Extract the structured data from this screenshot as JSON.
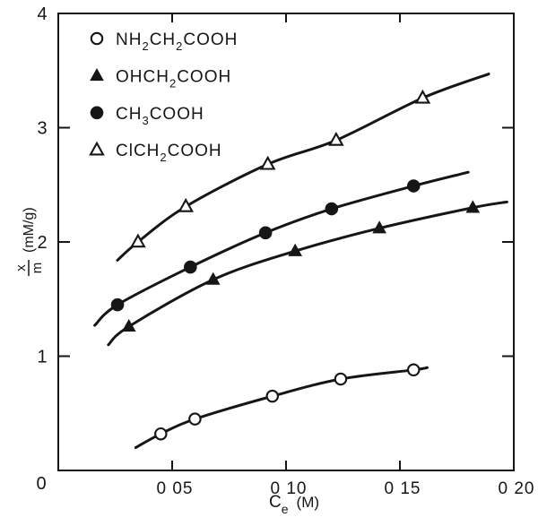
{
  "figure": {
    "background": "#ffffff",
    "ink": "#161616"
  },
  "chart_data": {
    "type": "line",
    "title": "",
    "xlabel": {
      "base": "C",
      "sub": "e",
      "units": "(M)"
    },
    "ylabel": {
      "numerator": "x",
      "denominator": "m",
      "units": "(mM/g)"
    },
    "xlim": [
      0,
      0.2
    ],
    "ylim": [
      0,
      4
    ],
    "grid": false,
    "legend_position": "upper-left-inside",
    "origin_label": "0",
    "x_ticks": [
      {
        "value": 0.05,
        "label": "0 05",
        "tick_mark": true
      },
      {
        "value": 0.1,
        "label": "0 10",
        "tick_mark": true
      },
      {
        "value": 0.15,
        "label": "0 15",
        "tick_mark": true
      },
      {
        "value": 0.2,
        "label": "0 20",
        "tick_mark": false
      }
    ],
    "y_ticks": [
      {
        "value": 1,
        "label": "1",
        "tick_mark": true
      },
      {
        "value": 2,
        "label": "2",
        "tick_mark": true
      },
      {
        "value": 3,
        "label": "3",
        "tick_mark": true
      },
      {
        "value": 4,
        "label": "4",
        "tick_mark": false
      }
    ],
    "legend": [
      {
        "formula": "NH2CH2COOH",
        "marker": "open-circle"
      },
      {
        "formula": "OHCH2COOH",
        "marker": "filled-triangle"
      },
      {
        "formula": "CH3COOH",
        "marker": "filled-circle"
      },
      {
        "formula": "ClCH2COOH",
        "marker": "open-triangle"
      }
    ],
    "series": [
      {
        "name": "NH2CH2COOH",
        "marker": "open-circle",
        "points": [
          [
            0.045,
            0.32
          ],
          [
            0.06,
            0.45
          ],
          [
            0.094,
            0.65
          ],
          [
            0.124,
            0.8
          ],
          [
            0.156,
            0.88
          ]
        ],
        "curve": [
          [
            0.034,
            0.2
          ],
          [
            0.045,
            0.32
          ],
          [
            0.06,
            0.45
          ],
          [
            0.094,
            0.65
          ],
          [
            0.124,
            0.8
          ],
          [
            0.156,
            0.88
          ],
          [
            0.162,
            0.9
          ]
        ]
      },
      {
        "name": "OHCH2COOH",
        "marker": "filled-triangle",
        "points": [
          [
            0.031,
            1.26
          ],
          [
            0.068,
            1.67
          ],
          [
            0.104,
            1.92
          ],
          [
            0.141,
            2.12
          ],
          [
            0.182,
            2.3
          ]
        ],
        "curve": [
          [
            0.022,
            1.1
          ],
          [
            0.031,
            1.26
          ],
          [
            0.068,
            1.67
          ],
          [
            0.104,
            1.92
          ],
          [
            0.141,
            2.12
          ],
          [
            0.182,
            2.3
          ],
          [
            0.197,
            2.35
          ]
        ]
      },
      {
        "name": "CH3COOH",
        "marker": "filled-circle",
        "points": [
          [
            0.026,
            1.45
          ],
          [
            0.058,
            1.78
          ],
          [
            0.091,
            2.08
          ],
          [
            0.12,
            2.29
          ],
          [
            0.156,
            2.49
          ]
        ],
        "curve": [
          [
            0.016,
            1.27
          ],
          [
            0.026,
            1.45
          ],
          [
            0.058,
            1.78
          ],
          [
            0.091,
            2.08
          ],
          [
            0.12,
            2.29
          ],
          [
            0.156,
            2.49
          ],
          [
            0.18,
            2.61
          ]
        ]
      },
      {
        "name": "ClCH2COOH",
        "marker": "open-triangle",
        "points": [
          [
            0.035,
            2.0
          ],
          [
            0.056,
            2.31
          ],
          [
            0.092,
            2.68
          ],
          [
            0.122,
            2.89
          ],
          [
            0.16,
            3.26
          ]
        ],
        "curve": [
          [
            0.026,
            1.84
          ],
          [
            0.035,
            2.0
          ],
          [
            0.056,
            2.31
          ],
          [
            0.092,
            2.68
          ],
          [
            0.122,
            2.89
          ],
          [
            0.16,
            3.26
          ],
          [
            0.189,
            3.47
          ]
        ]
      }
    ]
  }
}
